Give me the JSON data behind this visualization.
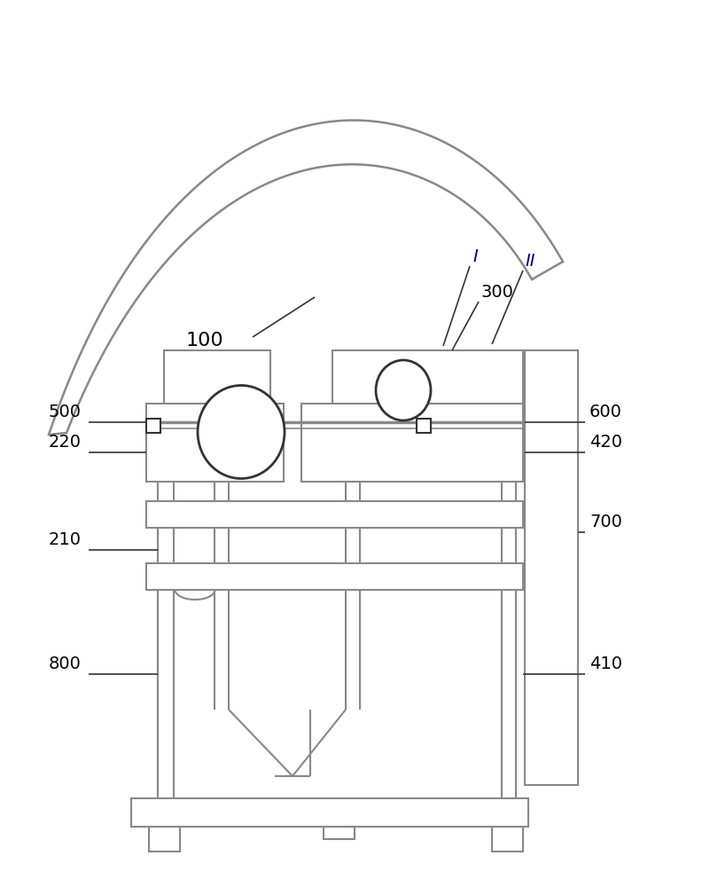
{
  "bg_color": "#ffffff",
  "lc": "#888888",
  "dc": "#333333",
  "fig_width": 8.1,
  "fig_height": 10.0
}
